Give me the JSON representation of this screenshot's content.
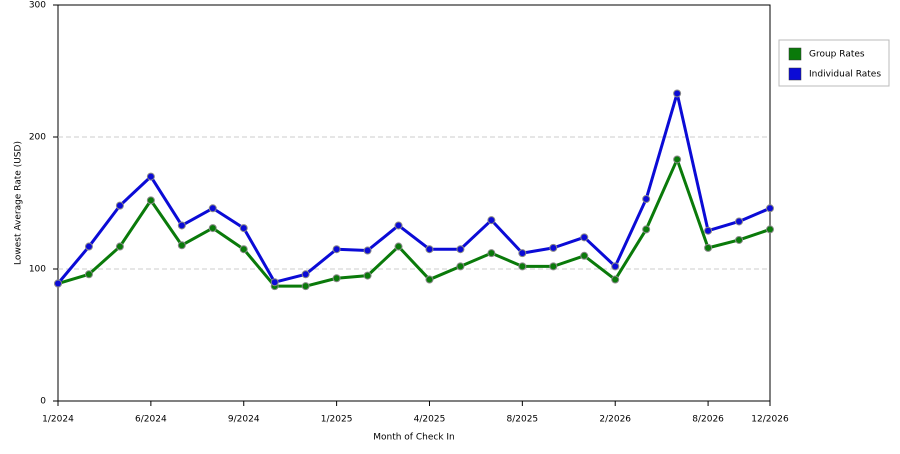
{
  "chart_data": {
    "type": "line",
    "x_label": "Month of Check In",
    "y_label": "Lowest Average Rate (USD)",
    "categories": [
      "1/2024",
      null,
      null,
      "6/2024",
      null,
      null,
      "9/2024",
      null,
      null,
      "1/2025",
      null,
      null,
      "4/2025",
      null,
      null,
      "8/2025",
      null,
      null,
      "2/2026",
      null,
      null,
      "8/2026",
      null,
      "12/2026"
    ],
    "series": [
      {
        "name": "Group Rates",
        "color": "#0a7a0a",
        "values": [
          89,
          96,
          117,
          152,
          118,
          131,
          115,
          87,
          87,
          93,
          95,
          117,
          92,
          102,
          112,
          102,
          102,
          110,
          92,
          130,
          183,
          116,
          122,
          130
        ]
      },
      {
        "name": "Individual Rates",
        "color": "#0b0bd6",
        "values": [
          89,
          117,
          148,
          170,
          133,
          146,
          131,
          90,
          96,
          115,
          114,
          133,
          115,
          115,
          137,
          112,
          116,
          124,
          102,
          153,
          233,
          129,
          136,
          146
        ]
      }
    ],
    "ylim": [
      0,
      300
    ],
    "yticks": [
      0,
      100,
      200,
      300
    ],
    "grid": true,
    "legend": "right"
  }
}
